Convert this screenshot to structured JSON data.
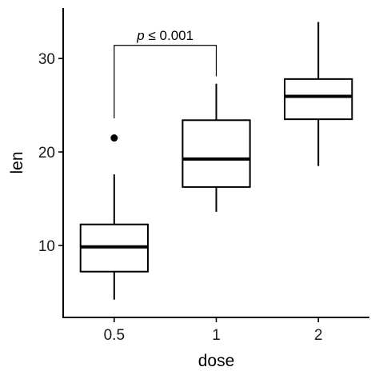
{
  "chart_data": {
    "type": "box",
    "xlabel": "dose",
    "ylabel": "len",
    "categories": [
      "0.5",
      "1",
      "2"
    ],
    "ylim": [
      2.3,
      35.4
    ],
    "yticks": [
      10,
      20,
      30
    ],
    "grid": false,
    "boxes": [
      {
        "category": "0.5",
        "whisker_low": 4.2,
        "q1": 7.2,
        "median": 9.85,
        "q3": 12.25,
        "whisker_high": 17.6,
        "outliers": [
          21.5
        ]
      },
      {
        "category": "1",
        "whisker_low": 13.6,
        "q1": 16.25,
        "median": 19.25,
        "q3": 23.4,
        "whisker_high": 27.3,
        "outliers": []
      },
      {
        "category": "2",
        "whisker_low": 18.5,
        "q1": 23.5,
        "median": 25.95,
        "q3": 27.8,
        "whisker_high": 33.9,
        "outliers": []
      }
    ],
    "annotation": {
      "from": "0.5",
      "to": "1",
      "p_symbol": "p",
      "p_rest": " ≤ 0.001"
    }
  }
}
